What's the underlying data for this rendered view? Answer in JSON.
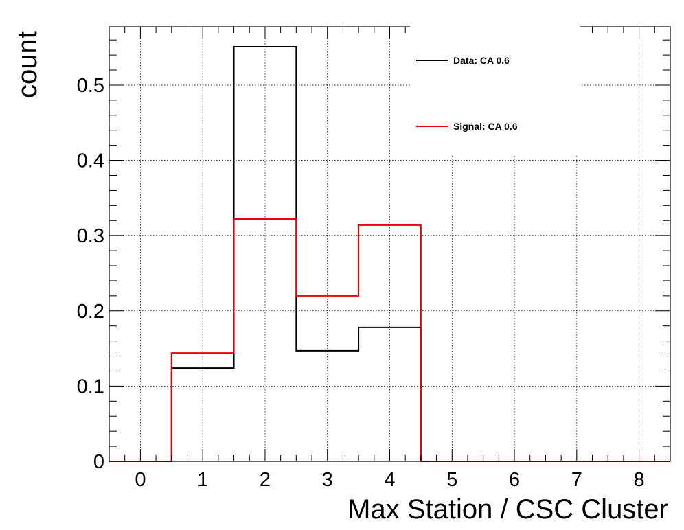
{
  "chart_data": {
    "type": "histogram",
    "title": "",
    "xlabel": "Max Station / CSC Cluster",
    "ylabel": "count",
    "xlim": [
      -0.5,
      8.5
    ],
    "ylim": [
      0,
      0.5775
    ],
    "x_ticks": [
      "0",
      "1",
      "2",
      "3",
      "4",
      "5",
      "6",
      "7",
      "8"
    ],
    "y_ticks": [
      "0",
      "0.1",
      "0.2",
      "0.3",
      "0.4",
      "0.5"
    ],
    "bin_width": 1,
    "bin_centers": [
      0,
      1,
      2,
      3,
      4,
      5,
      6,
      7,
      8
    ],
    "grid": true,
    "legend_position": "top-right",
    "series": [
      {
        "name": "Data: CA 0.6",
        "color": "#000000",
        "values": [
          0,
          0.124,
          0.551,
          0.147,
          0.178,
          0,
          0,
          0,
          0
        ]
      },
      {
        "name": "Signal: CA 0.6",
        "color": "#e8000b",
        "values": [
          0,
          0.144,
          0.322,
          0.22,
          0.314,
          0,
          0,
          0,
          0
        ]
      }
    ]
  }
}
